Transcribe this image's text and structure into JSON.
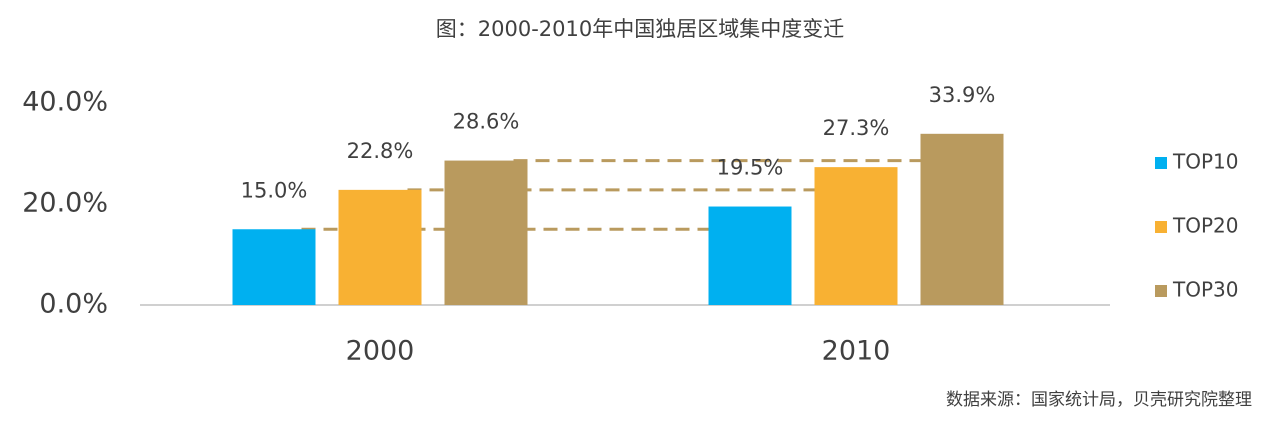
{
  "chart_data": {
    "type": "bar",
    "title": "图：2000-2010年中国独居区域集中度变迁",
    "categories": [
      "2000",
      "2010"
    ],
    "series": [
      {
        "name": "TOP10",
        "color": "#00b0f0",
        "values": [
          15.0,
          19.5
        ],
        "value_labels": [
          "15.0%",
          "19.5%"
        ]
      },
      {
        "name": "TOP20",
        "color": "#f8b133",
        "values": [
          22.8,
          27.3
        ],
        "value_labels": [
          "22.8%",
          "27.3%"
        ]
      },
      {
        "name": "TOP30",
        "color": "#b99a5e",
        "values": [
          28.6,
          33.9
        ],
        "value_labels": [
          "28.6%",
          "33.9%"
        ]
      }
    ],
    "ylim": [
      0,
      40
    ],
    "yticks": [
      {
        "value": 0,
        "label": "0.0%"
      },
      {
        "value": 20,
        "label": "20.0%"
      },
      {
        "value": 40,
        "label": "40.0%"
      }
    ],
    "grid": false,
    "legend": "right",
    "source": "数据来源：国家统计局，贝壳研究院整理"
  }
}
